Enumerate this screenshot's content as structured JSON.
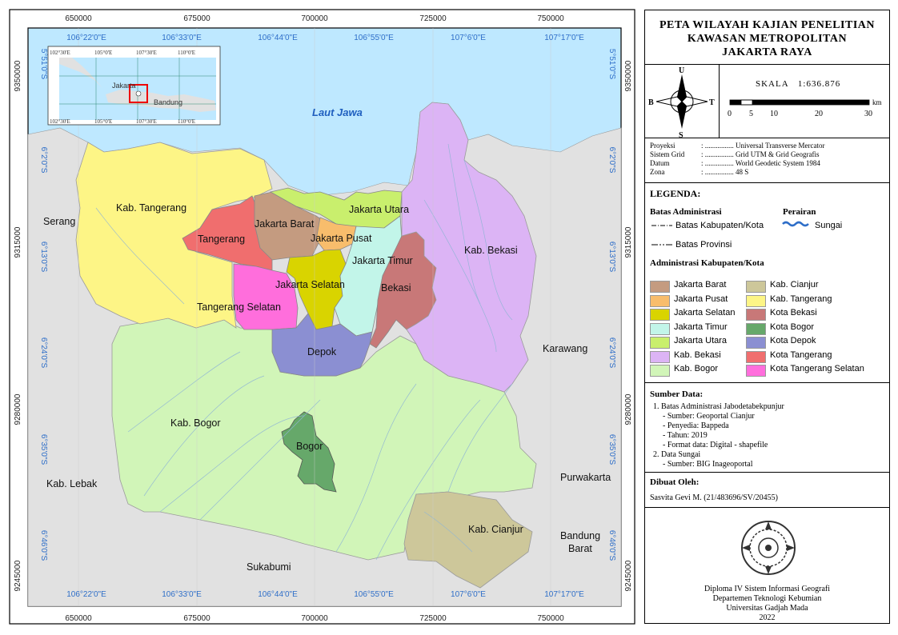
{
  "map": {
    "sea_label": "Laut Jawa",
    "x_ticks_utm": [
      "650000",
      "675000",
      "700000",
      "725000",
      "750000"
    ],
    "y_ticks_utm": [
      "9350000",
      "9315000",
      "9280000",
      "9245000"
    ],
    "x_ticks_geo": [
      "106°22'0\"E",
      "106°33'0\"E",
      "106°44'0\"E",
      "106°55'0\"E",
      "107°6'0\"E",
      "107°17'0\"E"
    ],
    "y_ticks_geo": [
      "5°51'0\"S",
      "6°2'0\"S",
      "6°13'0\"S",
      "6°24'0\"S",
      "6°35'0\"S",
      "6°46'0\"S"
    ],
    "region_labels": {
      "kab_tangerang": "Kab. Tangerang",
      "jakarta_barat": "Jakarta Barat",
      "jakarta_utara": "Jakarta Utara",
      "jakarta_pusat": "Jakarta Pusat",
      "jakarta_timur": "Jakarta Timur",
      "jakarta_selatan": "Jakarta Selatan",
      "tangerang": "Tangerang",
      "tangerang_selatan": "Tangerang Selatan",
      "bekasi": "Bekasi",
      "kab_bekasi": "Kab. Bekasi",
      "depok": "Depok",
      "kab_bogor": "Kab. Bogor",
      "bogor": "Bogor",
      "kab_cianjur": "Kab. Cianjur"
    },
    "outside_labels": {
      "serang": "Serang",
      "karawang": "Karawang",
      "lebak": "Kab. Lebak",
      "purwakarta": "Purwakarta",
      "bandung_barat_1": "Bandung",
      "bandung_barat_2": "Barat",
      "sukabumi": "Sukabumi"
    },
    "inset": {
      "x_ticks": [
        "102°30'E",
        "105°0'E",
        "107°30'E",
        "110°0'E"
      ],
      "y_ticks": [
        "5°0'S",
        "7°30'S"
      ],
      "labels": {
        "jakarta": "Jakarta",
        "bandung": "Bandung"
      }
    },
    "colors": {
      "sea": "#bee8ff",
      "land_out": "#e1e1e1",
      "kab_tangerang": "#fdf586",
      "tangerang": "#f06e6e",
      "tangerang_selatan": "#ff6edc",
      "jakarta_barat": "#c49b80",
      "jakarta_utara": "#c9ef6d",
      "jakarta_pusat": "#f8bd6c",
      "jakarta_selatan": "#d9d400",
      "jakarta_timur": "#c2f5e9",
      "kota_bekasi": "#c87878",
      "kab_bekasi": "#dcb4f5",
      "kota_depok": "#8b8fd2",
      "kab_bogor": "#d1f5b8",
      "kota_bogor": "#66a86a",
      "kab_cianjur": "#cdc79a",
      "river": "#8fb5d5",
      "grid_text": "#2e6ec8"
    }
  },
  "panel": {
    "title": [
      "PETA WILAYAH KAJIAN PENELITIAN",
      "KAWASAN METROPOLITAN",
      "JAKARTA RAYA"
    ],
    "compass": {
      "n": "U",
      "s": "S",
      "w": "B",
      "e": "T"
    },
    "scale_label": "SKALA",
    "scale_value": "1:636.876",
    "scale_ticks": [
      "0",
      "5",
      "10",
      "20",
      "30"
    ],
    "scale_unit": "km",
    "projection": [
      {
        "k": "Proyeksi",
        "v": "Universal Transverse Mercator"
      },
      {
        "k": "Sistem Grid",
        "v": "Grid UTM & Grid Geografis"
      },
      {
        "k": "Datum",
        "v": "World Geodetic System 1984"
      },
      {
        "k": "Zona",
        "v": "48 S"
      }
    ],
    "legend_title": "LEGENDA:",
    "batas_title": "Batas Administrasi",
    "batas_items": [
      "Batas Kabupaten/Kota",
      "Batas Provinsi"
    ],
    "perairan_title": "Perairan",
    "perairan_item": "Sungai",
    "admin_title": "Administrasi Kabupaten/Kota",
    "admin_left": [
      {
        "label": "Jakarta Barat",
        "color": "#c49b80"
      },
      {
        "label": "Jakarta Pusat",
        "color": "#f8bd6c"
      },
      {
        "label": "Jakarta Selatan",
        "color": "#d9d400"
      },
      {
        "label": "Jakarta Timur",
        "color": "#c2f5e9"
      },
      {
        "label": "Jakarta Utara",
        "color": "#c9ef6d"
      },
      {
        "label": "Kab. Bekasi",
        "color": "#dcb4f5"
      },
      {
        "label": "Kab. Bogor",
        "color": "#d1f5b8"
      }
    ],
    "admin_right": [
      {
        "label": "Kab. Cianjur",
        "color": "#cdc79a"
      },
      {
        "label": "Kab. Tangerang",
        "color": "#fdf586"
      },
      {
        "label": "Kota Bekasi",
        "color": "#c87878"
      },
      {
        "label": "Kota Bogor",
        "color": "#66a86a"
      },
      {
        "label": "Kota Depok",
        "color": "#8b8fd2"
      },
      {
        "label": "Kota Tangerang",
        "color": "#f06e6e"
      },
      {
        "label": "Kota Tangerang Selatan",
        "color": "#ff6edc"
      }
    ],
    "source_title": "Sumber Data:",
    "source_lines": [
      "1. Batas Administrasi Jabodetabekpunjur",
      "- Sumber: Geoportal Cianjur",
      "- Penyedia: Bappeda",
      "- Tahun: 2019",
      "- Format data: Digital - shapefile",
      "2. Data Sungai",
      "- Sumber: BIG Inageoportal"
    ],
    "maker_title": "Dibuat Oleh:",
    "maker_name": "Sasvita Gevi M. (21/483696/SV/20455)",
    "institution": [
      "Diploma IV Sistem Informasi Geografi",
      "Departemen Teknologi Kebumian",
      "Universitas Gadjah Mada",
      "2022"
    ]
  }
}
